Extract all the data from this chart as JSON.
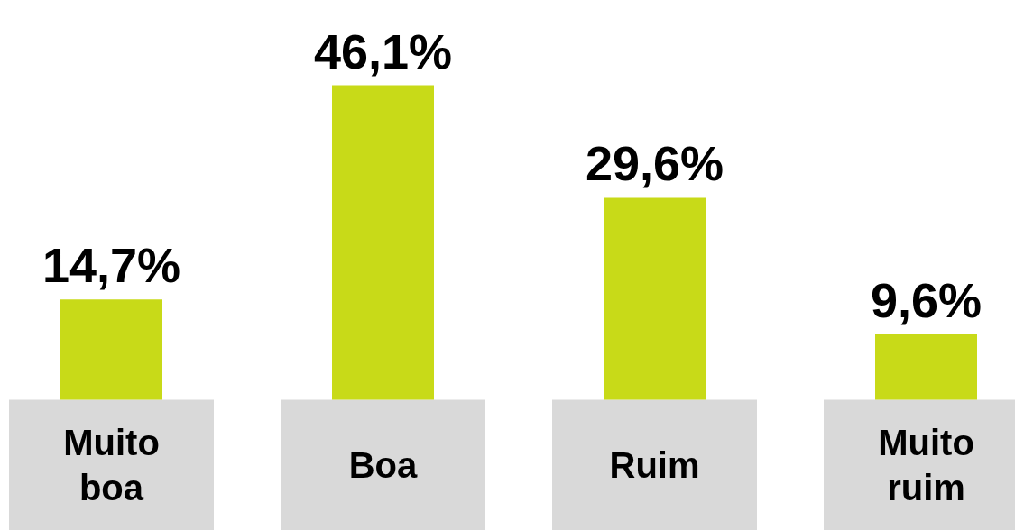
{
  "chart_data": {
    "type": "bar",
    "categories": [
      "Muito boa",
      "Boa",
      "Ruim",
      "Muito ruim"
    ],
    "values": [
      14.7,
      46.1,
      29.6,
      9.6
    ],
    "value_labels": [
      "14,7%",
      "46,1%",
      "29,6%",
      "9,6%"
    ],
    "color": "#c8da18",
    "grid": false
  }
}
